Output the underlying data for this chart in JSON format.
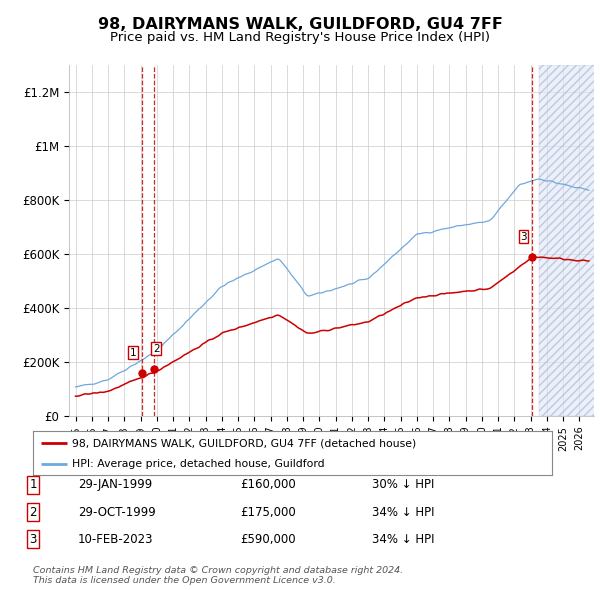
{
  "title": "98, DAIRYMANS WALK, GUILDFORD, GU4 7FF",
  "subtitle": "Price paid vs. HM Land Registry's House Price Index (HPI)",
  "ylabel_ticks": [
    "£0",
    "£200K",
    "£400K",
    "£600K",
    "£800K",
    "£1M",
    "£1.2M"
  ],
  "ytick_values": [
    0,
    200000,
    400000,
    600000,
    800000,
    1000000,
    1200000
  ],
  "ylim": [
    0,
    1300000
  ],
  "xlim_left": 1994.6,
  "xlim_right": 2026.9,
  "sale_year_vals": [
    1999.075,
    1999.825,
    2023.108
  ],
  "sale_prices": [
    160000,
    175000,
    590000
  ],
  "sale_labels": [
    "1",
    "2",
    "3"
  ],
  "table_data": [
    [
      "1",
      "29-JAN-1999",
      "£160,000",
      "30% ↓ HPI"
    ],
    [
      "2",
      "29-OCT-1999",
      "£175,000",
      "34% ↓ HPI"
    ],
    [
      "3",
      "10-FEB-2023",
      "£590,000",
      "34% ↓ HPI"
    ]
  ],
  "legend_line1": "98, DAIRYMANS WALK, GUILDFORD, GU4 7FF (detached house)",
  "legend_line2": "HPI: Average price, detached house, Guildford",
  "footer": "Contains HM Land Registry data © Crown copyright and database right 2024.\nThis data is licensed under the Open Government Licence v3.0.",
  "hpi_color": "#6fa8dc",
  "price_color": "#cc0000",
  "vline_color": "#cc0000",
  "bg_color": "#ffffff",
  "grid_color": "#cccccc",
  "title_fontsize": 11.5,
  "subtitle_fontsize": 9.5,
  "future_shade_start": 2023.5,
  "future_shade_end": 2027.0
}
